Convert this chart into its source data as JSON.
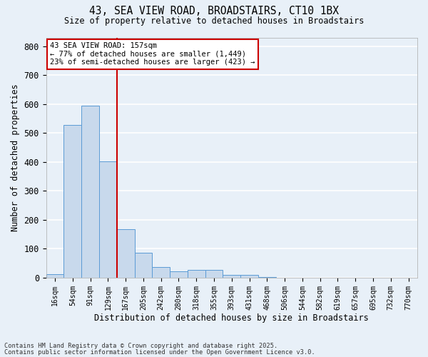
{
  "title_line1": "43, SEA VIEW ROAD, BROADSTAIRS, CT10 1BX",
  "title_line2": "Size of property relative to detached houses in Broadstairs",
  "xlabel": "Distribution of detached houses by size in Broadstairs",
  "ylabel": "Number of detached properties",
  "categories": [
    "16sqm",
    "54sqm",
    "91sqm",
    "129sqm",
    "167sqm",
    "205sqm",
    "242sqm",
    "280sqm",
    "318sqm",
    "355sqm",
    "393sqm",
    "431sqm",
    "468sqm",
    "506sqm",
    "544sqm",
    "582sqm",
    "619sqm",
    "657sqm",
    "695sqm",
    "732sqm",
    "770sqm"
  ],
  "values": [
    13,
    528,
    595,
    403,
    168,
    87,
    36,
    23,
    27,
    27,
    11,
    11,
    3,
    0,
    0,
    0,
    0,
    0,
    0,
    0,
    0
  ],
  "bar_color": "#c8d9ec",
  "bar_edge_color": "#5b9bd5",
  "background_color": "#e8f0f8",
  "grid_color": "#ffffff",
  "vline_color": "#cc0000",
  "annotation_text": "43 SEA VIEW ROAD: 157sqm\n← 77% of detached houses are smaller (1,449)\n23% of semi-detached houses are larger (423) →",
  "annotation_box_facecolor": "#ffffff",
  "annotation_box_edgecolor": "#cc0000",
  "ylim": [
    0,
    830
  ],
  "yticks": [
    0,
    100,
    200,
    300,
    400,
    500,
    600,
    700,
    800
  ],
  "footnote_line1": "Contains HM Land Registry data © Crown copyright and database right 2025.",
  "footnote_line2": "Contains public sector information licensed under the Open Government Licence v3.0."
}
